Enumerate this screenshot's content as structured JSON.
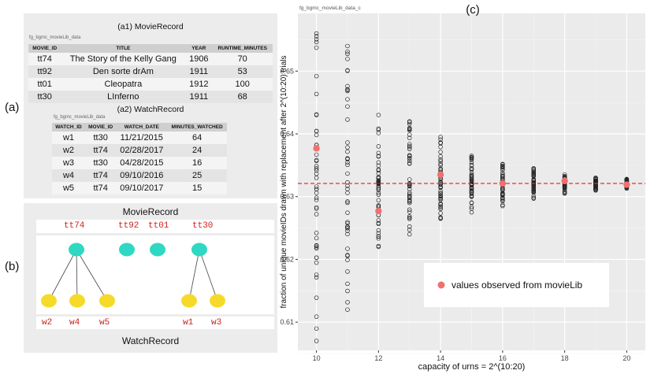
{
  "panel_labels": {
    "a": "(a)",
    "b": "(b)",
    "c": "(c)"
  },
  "movie_record": {
    "caption": "(a1) MovieRecord",
    "source": "fg_bgmc_movieLib_data",
    "headers": [
      "MOVIE_ID",
      "TITLE",
      "YEAR",
      "RUNTIME_MINUTES"
    ],
    "rows": [
      [
        "tt74",
        "The Story of the Kelly Gang",
        "1906",
        "70"
      ],
      [
        "tt92",
        "Den sorte drAm",
        "1911",
        "53"
      ],
      [
        "tt01",
        "Cleopatra",
        "1912",
        "100"
      ],
      [
        "tt30",
        "LInferno",
        "1911",
        "68"
      ]
    ]
  },
  "watch_record": {
    "caption": "(a2) WatchRecord",
    "source": "fg_bgmc_movieLib_data",
    "headers": [
      "WATCH_ID",
      "MOVIE_ID",
      "WATCH_DATE",
      "MINUTES_WATCHED"
    ],
    "rows": [
      [
        "w1",
        "tt30",
        "11/21/2015",
        "64"
      ],
      [
        "w2",
        "tt74",
        "02/28/2017",
        "24"
      ],
      [
        "w3",
        "tt30",
        "04/28/2015",
        "16"
      ],
      [
        "w4",
        "tt74",
        "09/10/2016",
        "25"
      ],
      [
        "w5",
        "tt74",
        "09/10/2017",
        "15"
      ]
    ]
  },
  "diagram": {
    "top_title": "MovieRecord",
    "bottom_title": "WatchRecord",
    "movie_ids": [
      "tt74",
      "tt92",
      "tt01",
      "tt30"
    ],
    "watch_ids": [
      "w2",
      "w4",
      "w5",
      "w1",
      "w3"
    ],
    "movie_node_color": "#2fd8c2",
    "watch_node_color": "#f6da2a",
    "label_color": "#d0201b",
    "links": [
      [
        "tt74",
        "w2"
      ],
      [
        "tt74",
        "w4"
      ],
      [
        "tt74",
        "w5"
      ],
      [
        "tt30",
        "w1"
      ],
      [
        "tt30",
        "w3"
      ]
    ]
  },
  "chart_data": {
    "type": "scatter",
    "subtitle": "fg_bgmc_movieLib_data_c",
    "xlabel": "capacity of urns = 2^(10:20)",
    "ylabel": "fraction of unique movieIDs drawn with replacement after 2^(10:20) trials",
    "xlim": [
      9.4,
      20.6
    ],
    "ylim": [
      0.6055,
      0.6592
    ],
    "x_ticks": [
      10,
      12,
      14,
      16,
      18,
      20
    ],
    "y_ticks": [
      0.61,
      0.62,
      0.63,
      0.64,
      0.65
    ],
    "y_tick_labels": [
      "0.61",
      "0.62",
      "0.63",
      "0.64",
      "0.65"
    ],
    "reference_line": 0.6321,
    "reference_color": "#e8302a",
    "legend": {
      "label": "values observed from movieLib",
      "color": "#f07070"
    },
    "simulated": [
      {
        "x": 10,
        "min": 0.607,
        "max": 0.656
      },
      {
        "x": 11,
        "min": 0.612,
        "max": 0.654
      },
      {
        "x": 12,
        "min": 0.622,
        "max": 0.643
      },
      {
        "x": 13,
        "min": 0.624,
        "max": 0.642
      },
      {
        "x": 14,
        "min": 0.6265,
        "max": 0.6395
      },
      {
        "x": 15,
        "min": 0.6275,
        "max": 0.6365
      },
      {
        "x": 16,
        "min": 0.6285,
        "max": 0.6352
      },
      {
        "x": 17,
        "min": 0.6297,
        "max": 0.6345
      },
      {
        "x": 18,
        "min": 0.6305,
        "max": 0.6335
      },
      {
        "x": 19,
        "min": 0.631,
        "max": 0.633
      },
      {
        "x": 20,
        "min": 0.6313,
        "max": 0.6328
      }
    ],
    "observed": [
      {
        "x": 10,
        "y": 0.6377
      },
      {
        "x": 12,
        "y": 0.6277
      },
      {
        "x": 14,
        "y": 0.6335
      },
      {
        "x": 16,
        "y": 0.6321
      },
      {
        "x": 18,
        "y": 0.6325
      },
      {
        "x": 20,
        "y": 0.6319
      }
    ]
  }
}
